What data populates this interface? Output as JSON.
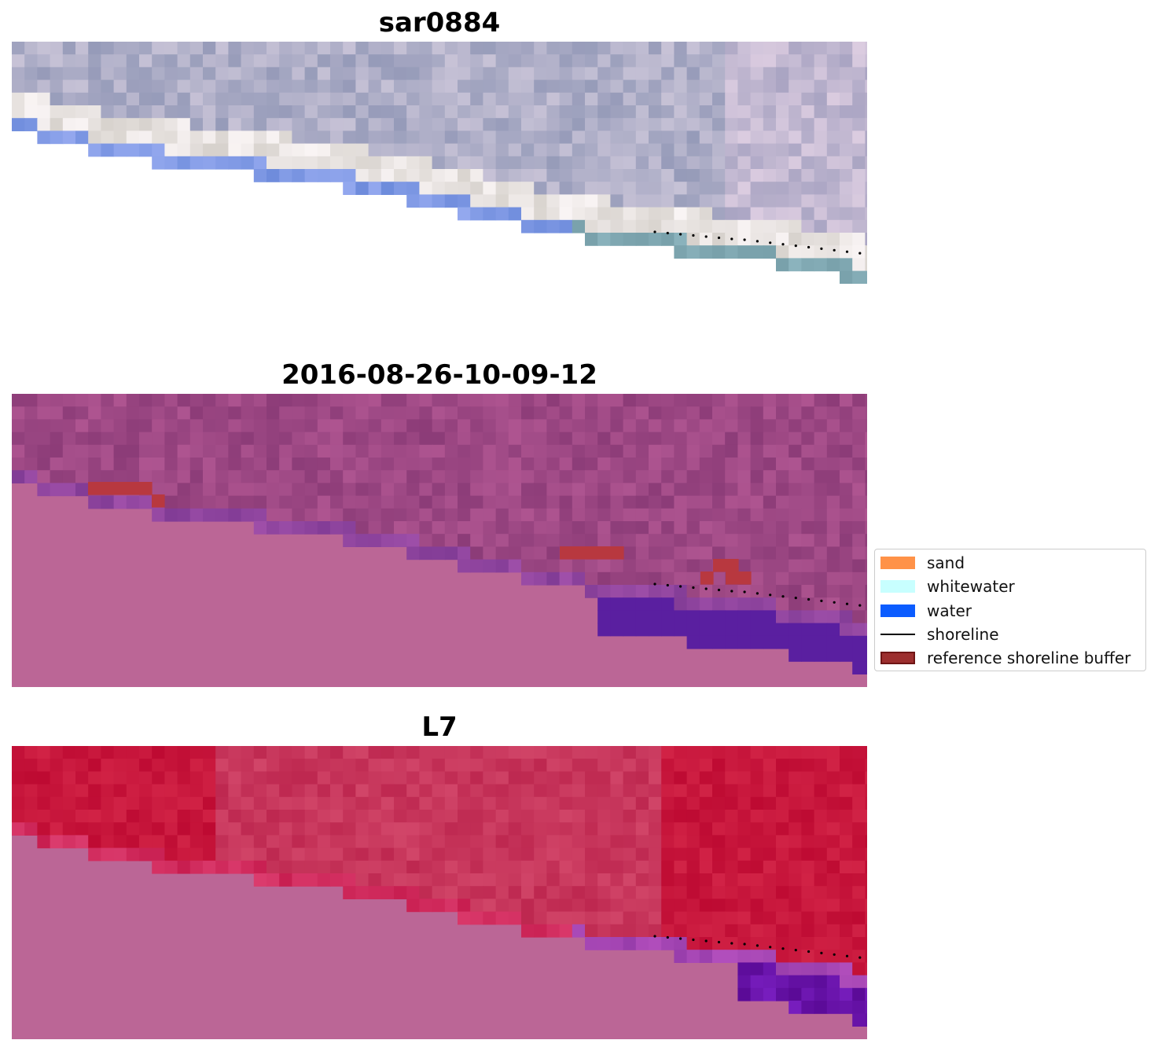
{
  "panels": [
    {
      "title": "sar0884",
      "style": "rgb"
    },
    {
      "title": "2016-08-26-10-09-12",
      "style": "classified"
    },
    {
      "title": "L7",
      "style": "index"
    }
  ],
  "legend": {
    "items": [
      {
        "label": "sand",
        "color": "#ff9248",
        "kind": "patch"
      },
      {
        "label": "whitewater",
        "color": "#c8ffff",
        "kind": "patch"
      },
      {
        "label": "water",
        "color": "#0b5cff",
        "kind": "patch"
      },
      {
        "label": "shoreline",
        "color": "#000000",
        "kind": "line"
      },
      {
        "label": "reference shoreline buffer",
        "color": "#9c2e2e",
        "kind": "patch"
      }
    ]
  },
  "colors": {
    "background_fill": "#bb6696",
    "water_class": "#5a1fa0",
    "buffer": "#b8383f"
  }
}
